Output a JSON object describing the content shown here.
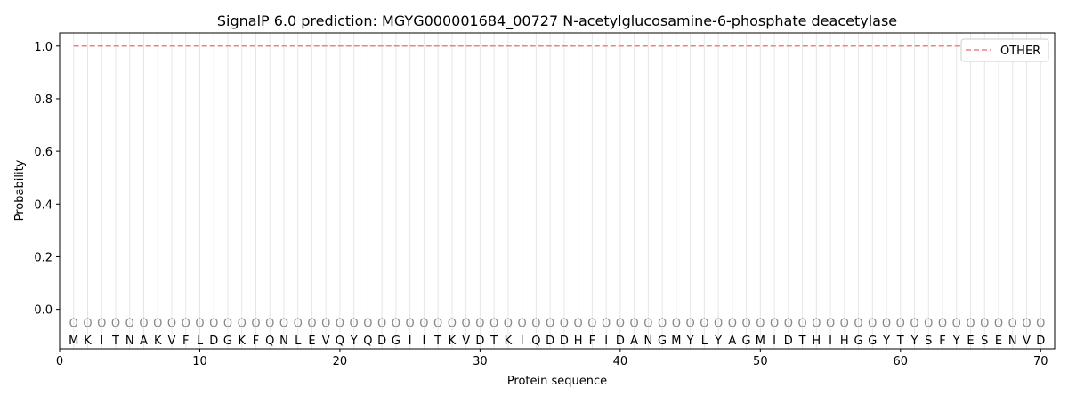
{
  "chart_data": {
    "type": "line",
    "title": "SignalP 6.0 prediction: MGYG000001684_00727 N-acetylglucosamine-6-phosphate deacetylase",
    "xlabel": "Protein sequence",
    "ylabel": "Probability",
    "xlim": [
      0,
      71
    ],
    "ylim": [
      -0.15,
      1.05
    ],
    "xticks": [
      0,
      10,
      20,
      30,
      40,
      50,
      60,
      70
    ],
    "yticks": [
      "0.0",
      "0.2",
      "0.4",
      "0.6",
      "0.8",
      "1.0"
    ],
    "ytick_values": [
      0.0,
      0.2,
      0.4,
      0.6,
      0.8,
      1.0
    ],
    "grid": "vertical lines at each residue",
    "legend_position": "top-right",
    "sequence": [
      "M",
      "K",
      "I",
      "T",
      "N",
      "A",
      "K",
      "V",
      "F",
      "L",
      "D",
      "G",
      "K",
      "F",
      "Q",
      "N",
      "L",
      "E",
      "V",
      "Q",
      "Y",
      "Q",
      "D",
      "G",
      "I",
      "I",
      "T",
      "K",
      "V",
      "D",
      "T",
      "K",
      "I",
      "Q",
      "D",
      "D",
      "H",
      "F",
      "I",
      "D",
      "A",
      "N",
      "G",
      "M",
      "Y",
      "L",
      "Y",
      "A",
      "G",
      "M",
      "I",
      "D",
      "T",
      "H",
      "I",
      "H",
      "G",
      "G",
      "Y",
      "T",
      "Y",
      "S",
      "F",
      "Y",
      "E",
      "S",
      "E",
      "N",
      "V",
      "D"
    ],
    "region_label": "O",
    "series": [
      {
        "name": "OTHER",
        "color": "#f08080",
        "style": "dashed",
        "x_start": 1,
        "x_end": 70,
        "value": 1.0
      }
    ]
  }
}
